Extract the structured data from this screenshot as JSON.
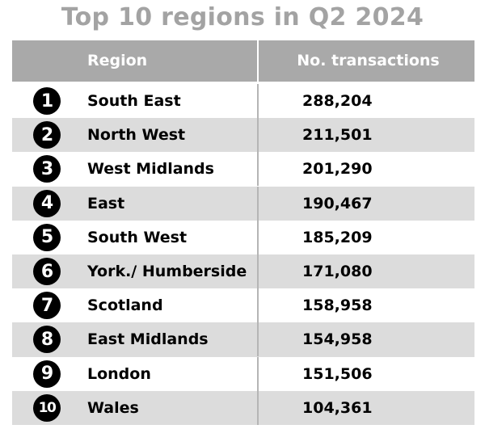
{
  "title": "Top 10 regions in Q2 2024",
  "table": {
    "columns": [
      "Region",
      "No. transactions"
    ],
    "rows": [
      {
        "rank": "1",
        "region": "South East",
        "transactions": "288,204"
      },
      {
        "rank": "2",
        "region": "North West",
        "transactions": "211,501"
      },
      {
        "rank": "3",
        "region": "West Midlands",
        "transactions": "201,290"
      },
      {
        "rank": "4",
        "region": "East",
        "transactions": "190,467"
      },
      {
        "rank": "5",
        "region": "South West",
        "transactions": "185,209"
      },
      {
        "rank": "6",
        "region": "York./ Humberside",
        "transactions": "171,080"
      },
      {
        "rank": "7",
        "region": "Scotland",
        "transactions": "158,958"
      },
      {
        "rank": "8",
        "region": "East Midlands",
        "transactions": "154,958"
      },
      {
        "rank": "9",
        "region": "London",
        "transactions": "151,506"
      },
      {
        "rank": "10",
        "region": "Wales",
        "transactions": "104,361"
      }
    ]
  },
  "colors": {
    "title": "#a3a3a3",
    "header_bg": "#a9a9a9",
    "row_shade": "#dcdcdc",
    "badge_bg": "#000000"
  }
}
